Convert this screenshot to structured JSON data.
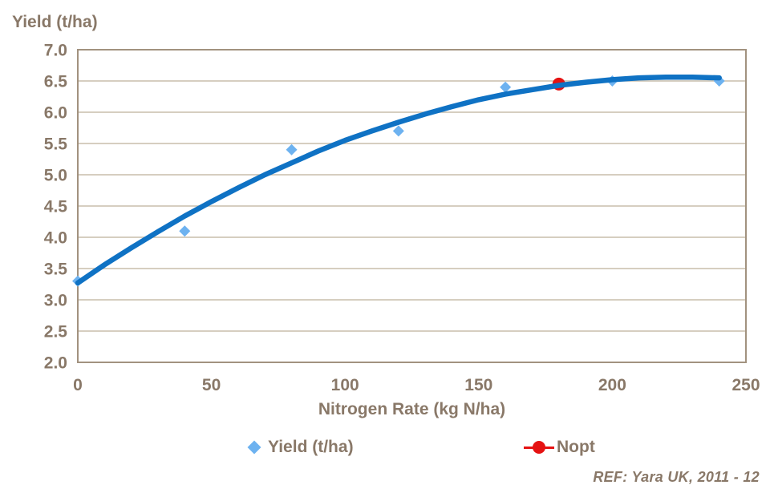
{
  "title": "Yield (t/ha)",
  "colors": {
    "text": "#897868",
    "axis": "#a2927f",
    "grid": "#c8bdac",
    "curve": "#0f72c4",
    "point": "#6db2f0",
    "nopt": "#e51212"
  },
  "chart_data": {
    "type": "scatter",
    "title": "Yield (t/ha)",
    "xlabel": "Nitrogen Rate (kg N/ha)",
    "ylabel": "Yield (t/ha)",
    "xlim": [
      0,
      250
    ],
    "ylim": [
      2.0,
      7.0
    ],
    "xticks": [
      "0",
      "50",
      "100",
      "150",
      "200",
      "250"
    ],
    "yticks": [
      "7.0",
      "6.5",
      "6.0",
      "5.5",
      "5.0",
      "4.5",
      "4.0",
      "3.5",
      "3.0",
      "2.5",
      "2.0"
    ],
    "grid": "horizontal",
    "legend_position": "bottom",
    "series": [
      {
        "name": "Yield (t/ha)",
        "type": "scatter",
        "marker": "diamond",
        "color": "#6db2f0",
        "points": [
          [
            0,
            3.3
          ],
          [
            40,
            4.1
          ],
          [
            80,
            5.4
          ],
          [
            120,
            5.7
          ],
          [
            160,
            6.4
          ],
          [
            200,
            6.5
          ],
          [
            240,
            6.5
          ]
        ]
      },
      {
        "name": "Nopt",
        "type": "scatter",
        "marker": "circle",
        "color": "#e51212",
        "points": [
          [
            180,
            6.45
          ]
        ]
      },
      {
        "name": "Yield response curve",
        "type": "line",
        "color": "#0f72c4",
        "points": [
          [
            0,
            3.27
          ],
          [
            10,
            3.56
          ],
          [
            20,
            3.83
          ],
          [
            30,
            4.09
          ],
          [
            40,
            4.34
          ],
          [
            50,
            4.57
          ],
          [
            60,
            4.79
          ],
          [
            70,
            5.0
          ],
          [
            80,
            5.19
          ],
          [
            90,
            5.38
          ],
          [
            100,
            5.55
          ],
          [
            110,
            5.7
          ],
          [
            120,
            5.84
          ],
          [
            130,
            5.97
          ],
          [
            140,
            6.09
          ],
          [
            150,
            6.2
          ],
          [
            160,
            6.29
          ],
          [
            170,
            6.36
          ],
          [
            180,
            6.43
          ],
          [
            190,
            6.48
          ],
          [
            200,
            6.52
          ],
          [
            210,
            6.55
          ],
          [
            220,
            6.56
          ],
          [
            230,
            6.56
          ],
          [
            240,
            6.55
          ]
        ]
      }
    ]
  },
  "legend": {
    "items": [
      {
        "label": "Yield (t/ha)",
        "marker": "diamond-icon"
      },
      {
        "label": "Nopt",
        "marker": "circle-line-icon"
      }
    ]
  },
  "footer": {
    "ref_label": "REF: Yara UK, 2011 - 12"
  }
}
